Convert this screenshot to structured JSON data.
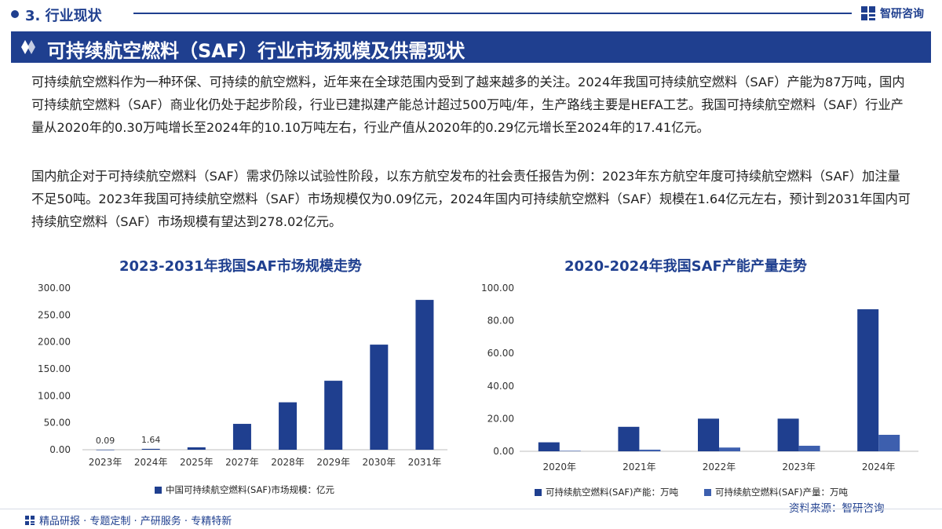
{
  "header": {
    "section_title": "3. 行业现状",
    "logo_text": "智研咨询",
    "banner_title": "可持续航空燃料（SAF）行业市场规模及供需现状"
  },
  "body": {
    "paragraph1": "可持续航空燃料作为一种环保、可持续的航空燃料，近年来在全球范围内受到了越来越多的关注。2024年我国可持续航空燃料（SAF）产能为87万吨，国内可持续航空燃料（SAF）商业化仍处于起步阶段，行业已建拟建产能总计超过500万吨/年，生产路线主要是HEFA工艺。我国可持续航空燃料（SAF）行业产量从2020年的0.30万吨增长至2024年的10.10万吨左右，行业产值从2020年的0.29亿元增长至2024年的17.41亿元。",
    "paragraph2": "国内航企对于可持续航空燃料（SAF）需求仍除以试验性阶段，以东方航空发布的社会责任报告为例：2023年东方航空年度可持续航空燃料（SAF）加注量不足50吨。2023年我国可持续航空燃料（SAF）市场规模仅为0.09亿元，2024年国内可持续航空燃料（SAF）规模在1.64亿元左右，预计到2031年国内可持续航空燃料（SAF）市场规模有望达到278.02亿元。"
  },
  "chart_data": [
    {
      "type": "bar",
      "title": "2023-2031年我国SAF市场规模走势",
      "categories": [
        "2023年",
        "2024年",
        "2025年",
        "2027年",
        "2028年",
        "2029年",
        "2030年",
        "2031年"
      ],
      "series": [
        {
          "name": "中国可持续航空燃料(SAF)市场规模：亿元",
          "values": [
            0.09,
            1.64,
            4.5,
            48,
            88,
            128,
            195,
            278.02
          ]
        }
      ],
      "data_labels": [
        "0.09",
        "1.64",
        "",
        "",
        "",
        "",
        "",
        ""
      ],
      "yticks": [
        "0.00",
        "50.00",
        "100.00",
        "150.00",
        "200.00",
        "250.00",
        "300.00"
      ],
      "ylim": [
        0,
        300
      ],
      "xlabel": "",
      "ylabel": "",
      "legend_position": "bottom",
      "color": "#1f3f8f"
    },
    {
      "type": "bar",
      "title": "2020-2024年我国SAF产能产量走势",
      "categories": [
        "2020年",
        "2021年",
        "2022年",
        "2023年",
        "2024年"
      ],
      "series": [
        {
          "name": "可持续航空燃料(SAF)产能：万吨",
          "values": [
            5.5,
            15,
            20,
            20,
            87
          ],
          "color": "#1f3f8f"
        },
        {
          "name": "可持续航空燃料(SAF)产量：万吨",
          "values": [
            0.3,
            1.0,
            2.3,
            3.4,
            10.1
          ],
          "color": "#3d5fae"
        }
      ],
      "yticks": [
        "0.00",
        "20.00",
        "40.00",
        "60.00",
        "80.00",
        "100.00"
      ],
      "ylim": [
        0,
        100
      ],
      "xlabel": "",
      "ylabel": "",
      "legend_position": "bottom"
    }
  ],
  "footer": {
    "left_text": "精品研报 · 专题定制 · 产研服务 · 专精特新",
    "source": "资料来源：智研咨询"
  }
}
